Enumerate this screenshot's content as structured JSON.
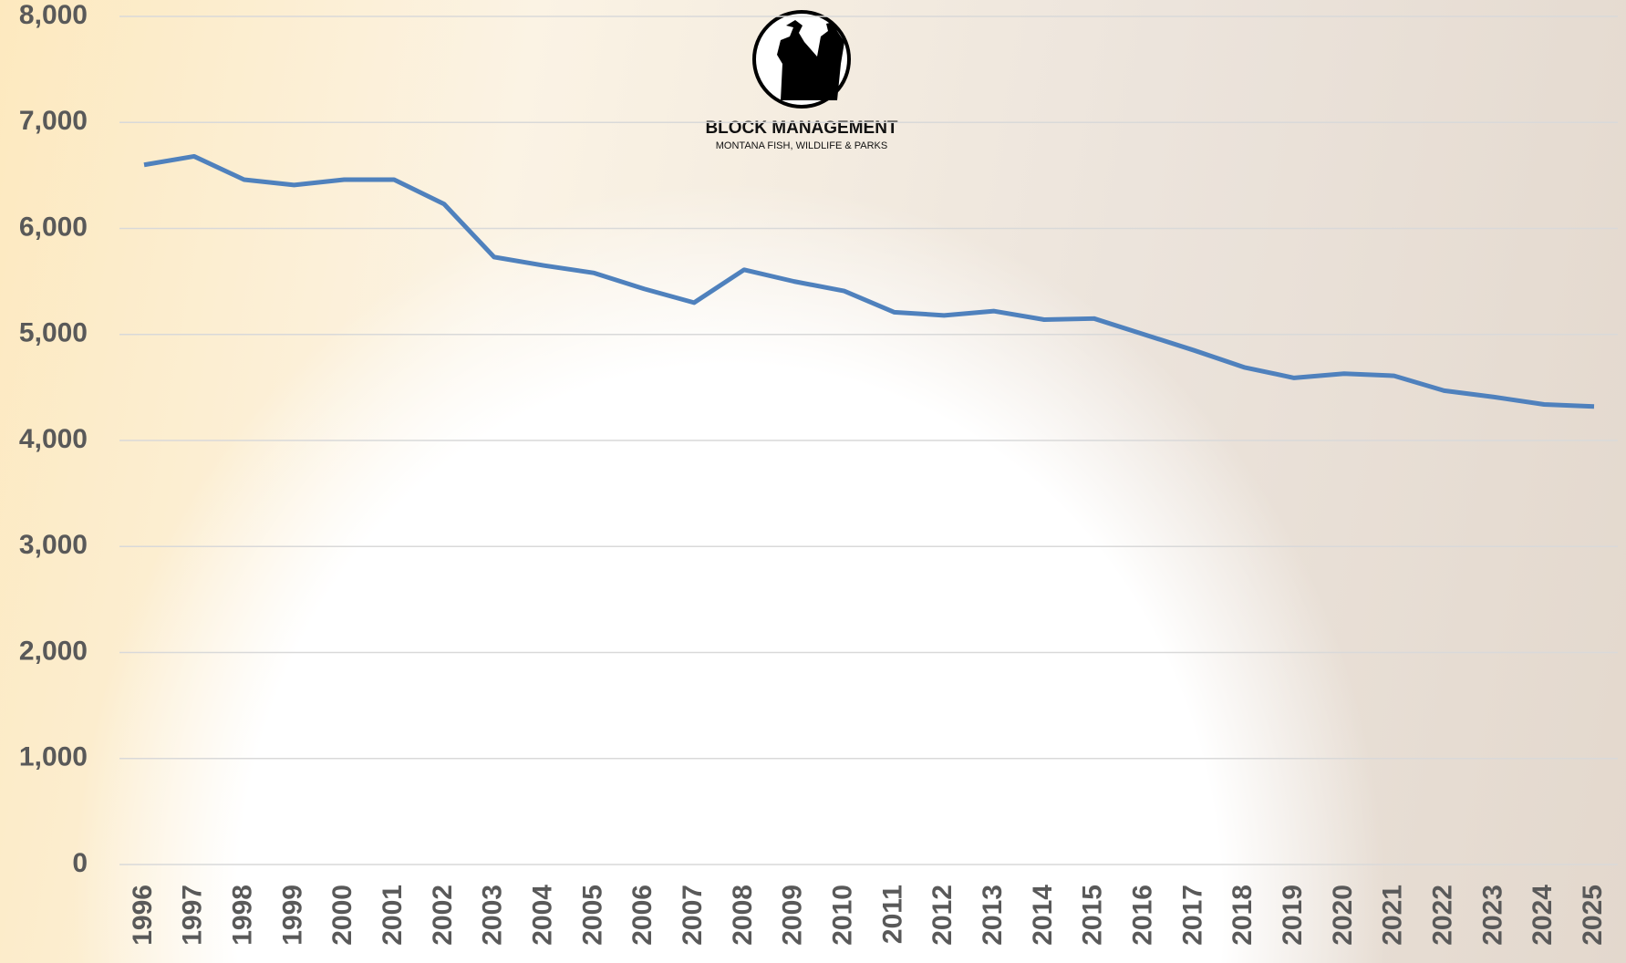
{
  "chart_data": {
    "type": "line",
    "logo": {
      "title": "BLOCK MANAGEMENT",
      "subtitle": "MONTANA FISH, WILDLIFE & PARKS"
    },
    "categories": [
      "1996",
      "1997",
      "1998",
      "1999",
      "2000",
      "2001",
      "2002",
      "2003",
      "2004",
      "2005",
      "2006",
      "2007",
      "2008",
      "2009",
      "2010",
      "2011",
      "2012",
      "2013",
      "2014",
      "2015",
      "2016",
      "2017",
      "2018",
      "2019",
      "2020",
      "2021",
      "2022",
      "2023",
      "2024",
      "2025"
    ],
    "series": [
      {
        "color": "#4f81bd",
        "values": [
          6600,
          6680,
          6460,
          6410,
          6460,
          6460,
          6230,
          5730,
          5650,
          5580,
          5430,
          5300,
          5610,
          5500,
          5410,
          5210,
          5180,
          5220,
          5140,
          5150,
          5000,
          4850,
          4690,
          4590,
          4630,
          4610,
          4470,
          4410,
          4340,
          4320
        ]
      }
    ],
    "ylim": [
      0,
      8000
    ],
    "yticks": [
      0,
      {
        "value": 1000,
        "label": "1,000"
      },
      {
        "value": 2000,
        "label": "2,000"
      },
      {
        "value": 3000,
        "label": "3,000"
      },
      {
        "value": 4000,
        "label": "4,000"
      },
      {
        "value": 5000,
        "label": "5,000"
      },
      {
        "value": 6000,
        "label": "6,000"
      },
      {
        "value": 7000,
        "label": "7,000"
      },
      {
        "value": 8000,
        "label": "8,000"
      }
    ],
    "grid": true
  }
}
